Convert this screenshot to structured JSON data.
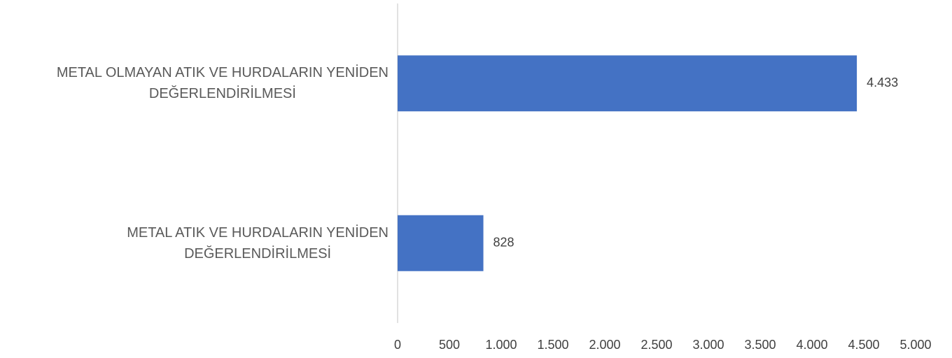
{
  "chart_data": {
    "type": "barh",
    "categories": [
      "METAL OLMAYAN ATIK VE HURDALARIN YENİDEN\nDEĞERLENDİRİLMESİ",
      "METAL ATIK VE HURDALARIN YENİDEN\nDEĞERLENDİRİLMESİ"
    ],
    "values": [
      4433,
      828
    ],
    "value_labels": [
      "4.433",
      "828"
    ],
    "color": "#4472c4",
    "xlim": [
      0,
      5000
    ],
    "xticks": [
      0,
      500,
      {
        "value": 1000,
        "label": "1.000"
      },
      {
        "value": 1500,
        "label": "1.500"
      },
      {
        "value": 2000,
        "label": "2.000"
      },
      {
        "value": 2500,
        "label": "2.500"
      },
      {
        "value": 3000,
        "label": "3.000"
      },
      {
        "value": 3500,
        "label": "3.500"
      },
      {
        "value": 4000,
        "label": "4.000"
      },
      {
        "value": 4500,
        "label": "4.500"
      },
      {
        "value": 5000,
        "label": "5.000"
      }
    ],
    "grid": false
  }
}
